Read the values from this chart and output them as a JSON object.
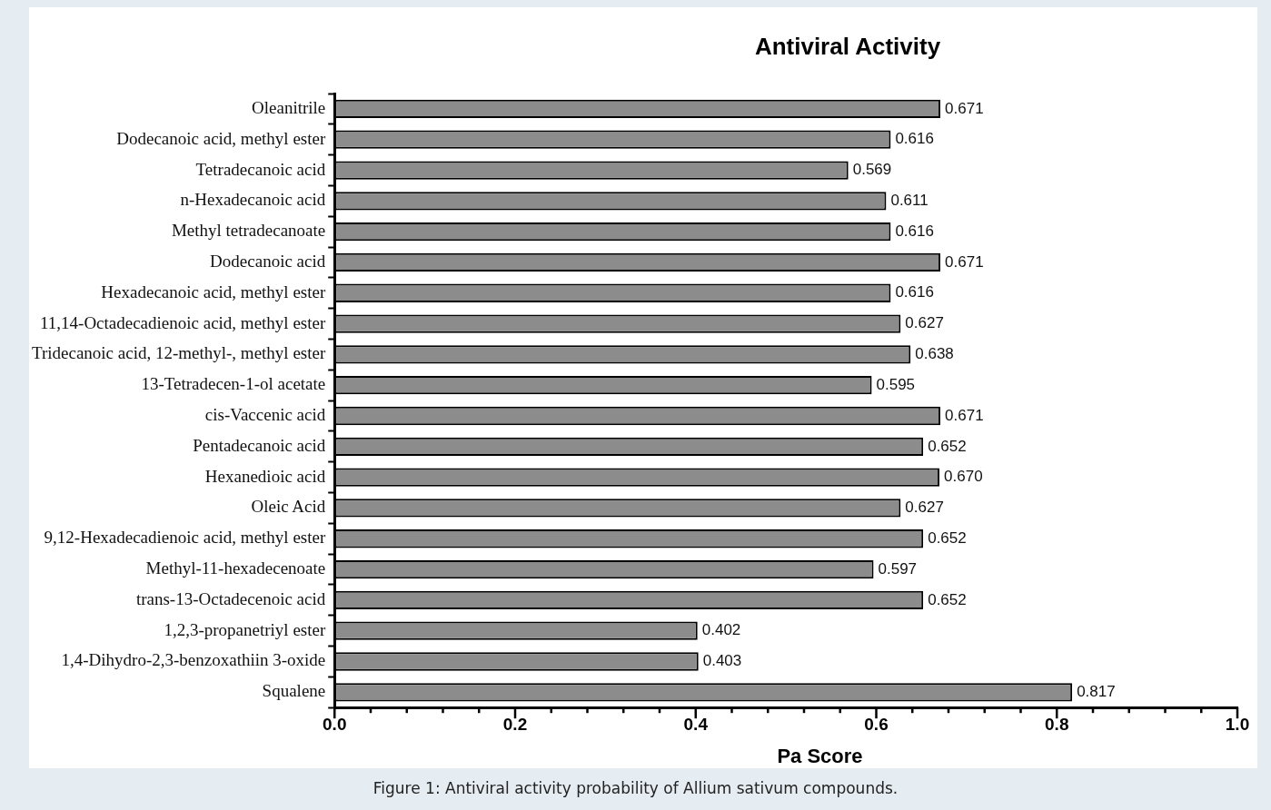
{
  "chart_data": {
    "type": "bar",
    "orientation": "horizontal",
    "title": "Antiviral Activity",
    "xlabel": "Pa Score",
    "categories": [
      "Oleanitrile",
      "Dodecanoic acid, methyl ester",
      "Tetradecanoic acid",
      "n-Hexadecanoic acid",
      "Methyl tetradecanoate",
      "Dodecanoic acid",
      "Hexadecanoic acid, methyl ester",
      "11,14-Octadecadienoic acid, methyl ester",
      "Tridecanoic acid, 12-methyl-, methyl ester",
      "13-Tetradecen-1-ol acetate",
      "cis-Vaccenic acid",
      "Pentadecanoic acid",
      "Hexanedioic acid",
      "Oleic Acid",
      "9,12-Hexadecadienoic acid, methyl ester",
      "Methyl-11-hexadecenoate",
      "trans-13-Octadecenoic acid",
      "1,2,3-propanetriyl ester",
      "1,4-Dihydro-2,3-benzoxathiin 3-oxide",
      "Squalene"
    ],
    "values": [
      0.671,
      0.616,
      0.569,
      0.611,
      0.616,
      0.671,
      0.616,
      0.627,
      0.638,
      0.595,
      0.671,
      0.652,
      0.67,
      0.627,
      0.652,
      0.597,
      0.652,
      0.402,
      0.403,
      0.817
    ],
    "value_labels": [
      "0.671",
      "0.616",
      "0.569",
      "0.611",
      "0.616",
      "0.671",
      "0.616",
      "0.627",
      "0.638",
      "0.595",
      "0.671",
      "0.652",
      "0.670",
      "0.627",
      "0.652",
      "0.597",
      "0.652",
      "0.402",
      "0.403",
      "0.817"
    ],
    "color": "#8c8c8c",
    "xlim": [
      0,
      1
    ],
    "xticks": [
      {
        "value": 0,
        "label": "0.0"
      },
      {
        "value": 0.04,
        "label": null
      },
      {
        "value": 0.08,
        "label": null
      },
      {
        "value": 0.12,
        "label": null
      },
      {
        "value": 0.16,
        "label": null
      },
      {
        "value": 0.2,
        "label": "0.2"
      },
      {
        "value": 0.24,
        "label": null
      },
      {
        "value": 0.28,
        "label": null
      },
      {
        "value": 0.32,
        "label": null
      },
      {
        "value": 0.36,
        "label": null
      },
      {
        "value": 0.4,
        "label": "0.4"
      },
      {
        "value": 0.44,
        "label": null
      },
      {
        "value": 0.48,
        "label": null
      },
      {
        "value": 0.52,
        "label": null
      },
      {
        "value": 0.56,
        "label": null
      },
      {
        "value": 0.6,
        "label": "0.6"
      },
      {
        "value": 0.64,
        "label": null
      },
      {
        "value": 0.68,
        "label": null
      },
      {
        "value": 0.72,
        "label": null
      },
      {
        "value": 0.76,
        "label": null
      },
      {
        "value": 0.8,
        "label": "0.8"
      },
      {
        "value": 0.84,
        "label": null
      },
      {
        "value": 0.88,
        "label": null
      },
      {
        "value": 0.92,
        "label": null
      },
      {
        "value": 0.96,
        "label": null
      },
      {
        "value": 1,
        "label": "1.0"
      }
    ],
    "grid": false,
    "legend": false,
    "annotations": [
      "Figure 1: Antiviral activity probability of Allium sativum compounds."
    ]
  }
}
